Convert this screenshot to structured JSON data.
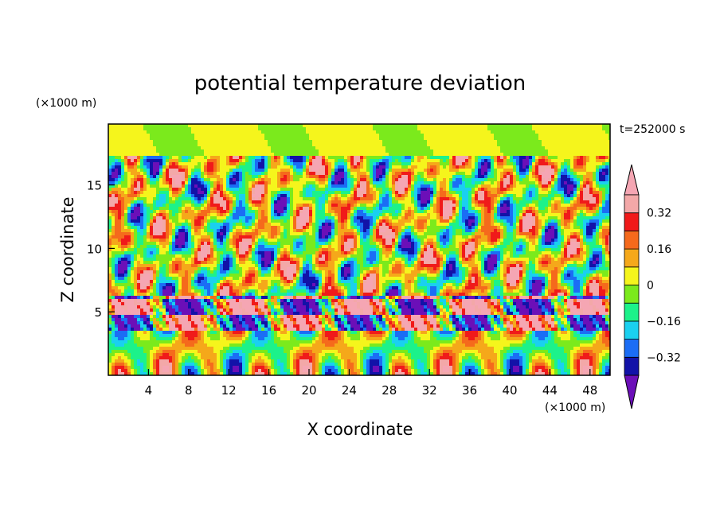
{
  "chart_data": {
    "type": "heatmap",
    "title": "potential temperature deviation",
    "xlabel": "X coordinate",
    "ylabel": "Z coordinate",
    "x_unit": "(×1000 m)",
    "y_unit": "(×1000 m)",
    "time_label": "t=252000 s",
    "xlim": [
      0,
      50
    ],
    "ylim": [
      0,
      19.8
    ],
    "x_ticks": [
      4,
      8,
      12,
      16,
      20,
      24,
      28,
      32,
      36,
      40,
      44,
      48
    ],
    "y_ticks": [
      5,
      10,
      15
    ],
    "colorbar": {
      "levels": [
        -0.4,
        -0.32,
        -0.24,
        -0.16,
        -0.08,
        0,
        0.08,
        0.16,
        0.24,
        0.32,
        0.4
      ],
      "labeled_ticks": [
        -0.32,
        -0.16,
        0,
        0.16,
        0.32
      ],
      "colors": [
        "#6b0fb8",
        "#1212a8",
        "#1b6df5",
        "#1ad0f0",
        "#1cf28a",
        "#7bea1c",
        "#f5f51c",
        "#f5a81a",
        "#f56a1c",
        "#f01a1a",
        "#f3a8a8",
        "#f5a6b3"
      ],
      "extend": "both"
    }
  }
}
